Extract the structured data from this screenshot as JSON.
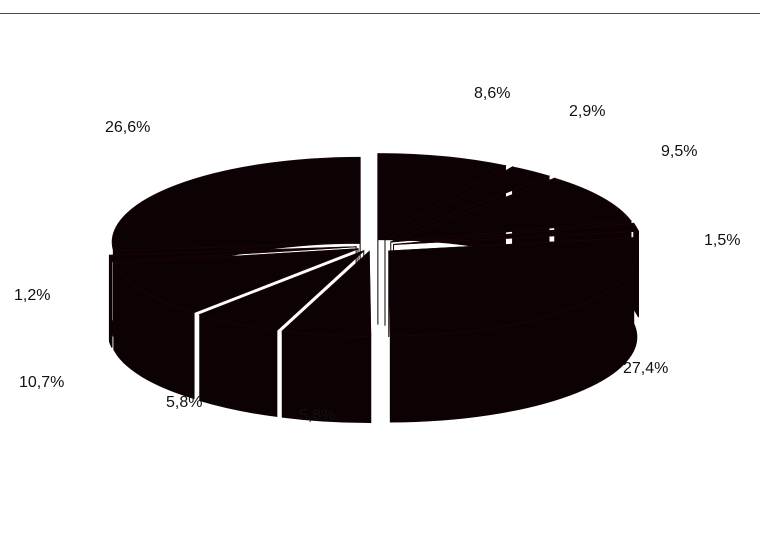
{
  "chart_data": {
    "type": "pie",
    "style": "3d-exploded",
    "slice_color": "#0d0203",
    "values": [
      8.6,
      2.9,
      9.5,
      1.5,
      27.4,
      5.8,
      5.8,
      10.7,
      1.2,
      26.6
    ],
    "labels": [
      "8,6%",
      "2,9%",
      "9,5%",
      "1,5%",
      "27,4%",
      "5,8%",
      "5,8%",
      "10,7%",
      "1,2%",
      "26,6%"
    ]
  }
}
